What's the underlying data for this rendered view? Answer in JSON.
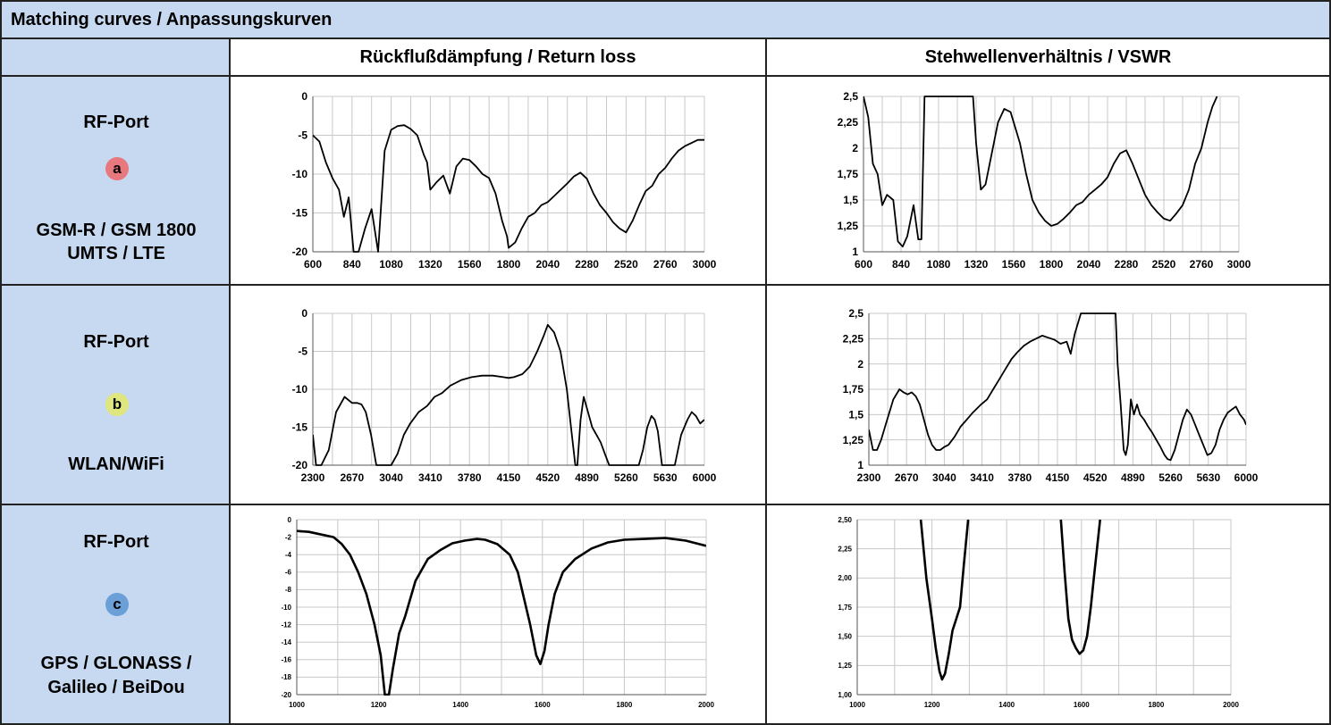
{
  "header": {
    "title": "Matching curves / Anpassungskurven",
    "col_return_loss": "Rückflußdämpfung / Return loss",
    "col_vswr": "Stehwellenverhältnis / VSWR"
  },
  "colors": {
    "cell_blue": "#c6d9f1",
    "badge_a": "#e6787e",
    "badge_b": "#dfe67d",
    "badge_c": "#6a9fd8",
    "line": "#000000",
    "grid": "#c8c8c8"
  },
  "ports": [
    {
      "title": "RF-Port",
      "badge": "a",
      "name_line1": "GSM-R / GSM 1800",
      "name_line2": "UMTS / LTE"
    },
    {
      "title": "RF-Port",
      "badge": "b",
      "name_line1": "WLAN/WiFi",
      "name_line2": ""
    },
    {
      "title": "RF-Port",
      "badge": "c",
      "name_line1": "GPS / GLONASS /",
      "name_line2": "Galileo / BeiDou"
    }
  ],
  "chart_data": [
    {
      "id": "a-rl",
      "type": "line",
      "grid": true,
      "xlim": [
        600,
        3000
      ],
      "ylim": [
        -20,
        0
      ],
      "x_ticks": [
        "600",
        "840",
        "1080",
        "1320",
        "1560",
        "1800",
        "2040",
        "2280",
        "2520",
        "2760",
        "3000"
      ],
      "y_ticks": [
        "0",
        "-5",
        "-10",
        "-15",
        "-20"
      ],
      "series": [
        {
          "x": [
            600,
            640,
            680,
            720,
            760,
            790,
            820,
            850,
            880,
            920,
            960,
            1000,
            1040,
            1080,
            1120,
            1160,
            1200,
            1240,
            1280,
            1300,
            1320,
            1360,
            1400,
            1440,
            1480,
            1520,
            1560,
            1600,
            1640,
            1680,
            1720,
            1760,
            1790,
            1800,
            1840,
            1880,
            1920,
            1960,
            2000,
            2040,
            2080,
            2120,
            2160,
            2200,
            2240,
            2280,
            2320,
            2360,
            2400,
            2440,
            2480,
            2520,
            2560,
            2600,
            2640,
            2680,
            2720,
            2760,
            2800,
            2840,
            2880,
            2920,
            2960,
            3000
          ],
          "y": [
            -5,
            -5.8,
            -8.5,
            -10.5,
            -12,
            -15.5,
            -13,
            -20,
            -20,
            -17,
            -14.5,
            -20,
            -7,
            -4.3,
            -3.8,
            -3.7,
            -4.2,
            -5,
            -7.5,
            -8.5,
            -12,
            -11,
            -10.2,
            -12.5,
            -9,
            -8,
            -8.2,
            -9,
            -10,
            -10.5,
            -12.5,
            -16,
            -18,
            -19.5,
            -18.8,
            -17,
            -15.5,
            -15,
            -14,
            -13.6,
            -12.8,
            -12,
            -11.2,
            -10.3,
            -9.8,
            -10.6,
            -12.5,
            -14,
            -15,
            -16.2,
            -17,
            -17.5,
            -16,
            -14,
            -12.2,
            -11.5,
            -10,
            -9.2,
            -8,
            -7,
            -6.4,
            -6,
            -5.6,
            -5.6
          ]
        }
      ]
    },
    {
      "id": "a-vswr",
      "type": "line",
      "grid": true,
      "xlim": [
        600,
        3000
      ],
      "ylim": [
        1,
        2.5
      ],
      "x_ticks": [
        "600",
        "840",
        "1080",
        "1320",
        "1560",
        "1800",
        "2040",
        "2280",
        "2520",
        "2760",
        "3000"
      ],
      "y_ticks": [
        "2,5",
        "2,25",
        "2",
        "1,75",
        "1,5",
        "1,25",
        "1"
      ],
      "series": [
        {
          "x": [
            600,
            630,
            660,
            690,
            720,
            750,
            790,
            820,
            850,
            880,
            920,
            950,
            970,
            990,
            1300,
            1320,
            1350,
            1380,
            1420,
            1460,
            1500,
            1540,
            1560,
            1600,
            1640,
            1680,
            1720,
            1760,
            1800,
            1840,
            1880,
            1920,
            1960,
            2000,
            2040,
            2080,
            2120,
            2160,
            2200,
            2240,
            2280,
            2320,
            2360,
            2400,
            2440,
            2480,
            2520,
            2560,
            2600,
            2640,
            2680,
            2720,
            2760,
            2800,
            2830,
            2860
          ],
          "y": [
            2.5,
            2.3,
            1.85,
            1.75,
            1.45,
            1.55,
            1.5,
            1.1,
            1.05,
            1.15,
            1.45,
            1.12,
            1.12,
            2.5,
            2.5,
            2.05,
            1.6,
            1.65,
            1.95,
            2.25,
            2.38,
            2.35,
            2.25,
            2.05,
            1.75,
            1.5,
            1.38,
            1.3,
            1.25,
            1.27,
            1.32,
            1.38,
            1.45,
            1.48,
            1.55,
            1.6,
            1.65,
            1.72,
            1.85,
            1.95,
            1.98,
            1.85,
            1.7,
            1.55,
            1.45,
            1.38,
            1.32,
            1.3,
            1.37,
            1.45,
            1.6,
            1.85,
            2.0,
            2.25,
            2.4,
            2.5
          ]
        }
      ]
    },
    {
      "id": "b-rl",
      "type": "line",
      "grid": true,
      "xlim": [
        2300,
        6000
      ],
      "ylim": [
        -20,
        0
      ],
      "x_ticks": [
        "2300",
        "2670",
        "3040",
        "3410",
        "3780",
        "4150",
        "4520",
        "4890",
        "5260",
        "5630",
        "6000"
      ],
      "y_ticks": [
        "0",
        "-5",
        "-10",
        "-15",
        "-20"
      ],
      "series": [
        {
          "x": [
            2300,
            2330,
            2380,
            2450,
            2520,
            2600,
            2670,
            2720,
            2760,
            2800,
            2850,
            2900,
            2960,
            3000,
            3040,
            3100,
            3160,
            3220,
            3300,
            3380,
            3450,
            3520,
            3600,
            3700,
            3800,
            3900,
            4000,
            4100,
            4150,
            4200,
            4280,
            4350,
            4420,
            4480,
            4520,
            4580,
            4640,
            4700,
            4740,
            4780,
            4800,
            4830,
            4860,
            4900,
            4940,
            4980,
            5020,
            5060,
            5100,
            5140,
            5180,
            5220,
            5260,
            5300,
            5340,
            5380,
            5420,
            5460,
            5500,
            5530,
            5560,
            5600,
            5640,
            5680,
            5720,
            5780,
            5840,
            5880,
            5920,
            5960,
            6000
          ],
          "y": [
            -16,
            -20,
            -20,
            -18,
            -13,
            -11,
            -11.8,
            -11.8,
            -12,
            -13,
            -16,
            -20,
            -20,
            -20,
            -20,
            -18.5,
            -16,
            -14.5,
            -13,
            -12.2,
            -11,
            -10.5,
            -9.5,
            -8.8,
            -8.4,
            -8.2,
            -8.2,
            -8.4,
            -8.5,
            -8.4,
            -8,
            -7,
            -5,
            -3,
            -1.5,
            -2.5,
            -5,
            -10,
            -15,
            -20,
            -20,
            -14,
            -11,
            -13,
            -15,
            -16,
            -17,
            -18.5,
            -20,
            -20,
            -20,
            -20,
            -20,
            -20,
            -20,
            -20,
            -18,
            -15,
            -13.5,
            -14,
            -15.5,
            -20,
            -20,
            -20,
            -20,
            -16,
            -14,
            -13,
            -13.5,
            -14.5,
            -14
          ]
        }
      ]
    },
    {
      "id": "b-vswr",
      "type": "line",
      "grid": true,
      "xlim": [
        2300,
        6000
      ],
      "ylim": [
        1,
        2.5
      ],
      "x_ticks": [
        "2300",
        "2670",
        "3040",
        "3410",
        "3780",
        "4150",
        "4520",
        "4890",
        "5260",
        "5630",
        "6000"
      ],
      "y_ticks": [
        "2,5",
        "2,25",
        "2",
        "1,75",
        "1,5",
        "1,25",
        "1"
      ],
      "series": [
        {
          "x": [
            2300,
            2340,
            2380,
            2420,
            2480,
            2540,
            2600,
            2640,
            2680,
            2720,
            2760,
            2800,
            2840,
            2880,
            2920,
            2960,
            3000,
            3040,
            3080,
            3140,
            3200,
            3260,
            3320,
            3400,
            3460,
            3520,
            3580,
            3640,
            3700,
            3760,
            3820,
            3880,
            3940,
            4000,
            4060,
            4120,
            4180,
            4240,
            4280,
            4320,
            4380,
            4460,
            4500,
            4600,
            4720,
            4740,
            4770,
            4800,
            4820,
            4840,
            4870,
            4900,
            4930,
            4960,
            5000,
            5040,
            5080,
            5120,
            5160,
            5200,
            5230,
            5260,
            5300,
            5340,
            5380,
            5420,
            5460,
            5500,
            5540,
            5580,
            5620,
            5660,
            5700,
            5740,
            5780,
            5820,
            5860,
            5900,
            5940,
            5980,
            6000
          ],
          "y": [
            1.35,
            1.15,
            1.15,
            1.25,
            1.45,
            1.65,
            1.75,
            1.72,
            1.7,
            1.72,
            1.68,
            1.6,
            1.45,
            1.3,
            1.2,
            1.15,
            1.15,
            1.18,
            1.2,
            1.28,
            1.38,
            1.45,
            1.52,
            1.6,
            1.65,
            1.75,
            1.85,
            1.95,
            2.05,
            2.12,
            2.18,
            2.22,
            2.25,
            2.28,
            2.26,
            2.24,
            2.2,
            2.22,
            2.1,
            2.3,
            2.5,
            2.5,
            2.5,
            2.5,
            2.5,
            2.0,
            1.6,
            1.15,
            1.1,
            1.2,
            1.65,
            1.5,
            1.6,
            1.5,
            1.45,
            1.38,
            1.32,
            1.25,
            1.18,
            1.1,
            1.06,
            1.05,
            1.15,
            1.3,
            1.45,
            1.55,
            1.5,
            1.4,
            1.3,
            1.2,
            1.1,
            1.12,
            1.2,
            1.35,
            1.45,
            1.52,
            1.55,
            1.58,
            1.5,
            1.45,
            1.4
          ]
        }
      ]
    },
    {
      "id": "c-rl",
      "type": "line",
      "grid": true,
      "xlim": [
        1000,
        2000
      ],
      "ylim": [
        -20,
        0
      ],
      "x_ticks": [
        "1000",
        "1200",
        "1400",
        "1600",
        "1800",
        "2000"
      ],
      "y_ticks": [
        "0",
        "-2",
        "-4",
        "-6",
        "-8",
        "-10",
        "-12",
        "-14",
        "-16",
        "-18",
        "-20"
      ],
      "series": [
        {
          "x": [
            1000,
            1030,
            1060,
            1090,
            1110,
            1130,
            1150,
            1170,
            1190,
            1205,
            1215,
            1225,
            1235,
            1250,
            1265,
            1290,
            1320,
            1350,
            1380,
            1410,
            1440,
            1460,
            1490,
            1520,
            1540,
            1555,
            1570,
            1585,
            1595,
            1605,
            1615,
            1630,
            1650,
            1680,
            1720,
            1760,
            1800,
            1850,
            1900,
            1950,
            2000
          ],
          "y": [
            -1.3,
            -1.4,
            -1.7,
            -2,
            -2.8,
            -4,
            -6,
            -8.5,
            -12,
            -15.5,
            -20,
            -20,
            -17,
            -13,
            -11,
            -7,
            -4.5,
            -3.5,
            -2.7,
            -2.4,
            -2.2,
            -2.3,
            -2.8,
            -4,
            -6,
            -9,
            -12,
            -15.5,
            -16.5,
            -15,
            -12,
            -8.5,
            -6,
            -4.5,
            -3.3,
            -2.6,
            -2.3,
            -2.2,
            -2.1,
            -2.4,
            -3.0
          ]
        }
      ]
    },
    {
      "id": "c-vswr",
      "type": "line",
      "grid": true,
      "xlim": [
        1000,
        2000
      ],
      "ylim": [
        1,
        2.5
      ],
      "x_ticks": [
        "1000",
        "1200",
        "1400",
        "1600",
        "1800",
        "2000"
      ],
      "y_ticks": [
        "2,50",
        "2,25",
        "2,00",
        "1,75",
        "1,50",
        "1,25",
        "1,00"
      ],
      "series": [
        {
          "x": [
            1170,
            1185,
            1200,
            1210,
            1220,
            1227,
            1235,
            1245,
            1255,
            1265,
            1275,
            1285,
            1297
          ],
          "y": [
            2.5,
            2.0,
            1.65,
            1.4,
            1.2,
            1.13,
            1.18,
            1.35,
            1.55,
            1.65,
            1.75,
            2.1,
            2.5
          ]
        },
        {
          "x": [
            1545,
            1555,
            1565,
            1575,
            1585,
            1595,
            1605,
            1615,
            1625,
            1635,
            1650
          ],
          "y": [
            2.5,
            2.05,
            1.65,
            1.47,
            1.4,
            1.35,
            1.38,
            1.5,
            1.75,
            2.05,
            2.5
          ]
        }
      ]
    }
  ]
}
